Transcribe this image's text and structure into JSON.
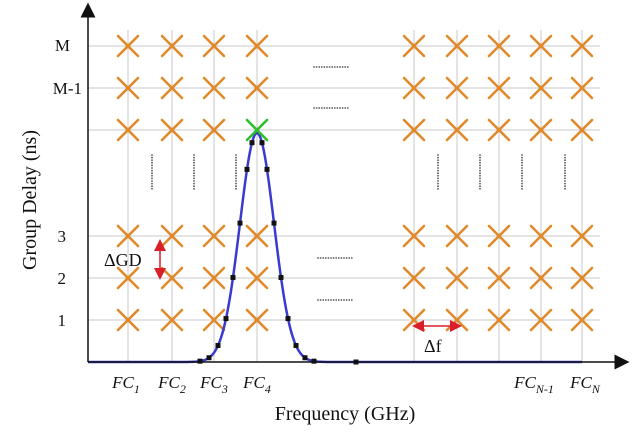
{
  "axes": {
    "y_title": "Group Delay (ns)",
    "x_title": "Frequency (GHz)"
  },
  "y_labels": [
    "M",
    "M-1",
    "3",
    "2",
    "1"
  ],
  "x_labels": [
    {
      "base": "FC",
      "sub": "1"
    },
    {
      "base": "FC",
      "sub": "2"
    },
    {
      "base": "FC",
      "sub": "3"
    },
    {
      "base": "FC",
      "sub": "4"
    },
    {
      "base": "FC",
      "sub": "N-1"
    },
    {
      "base": "FC",
      "sub": "N"
    }
  ],
  "annotations": {
    "delta_gd": "ΔGD",
    "delta_f": "Δf"
  },
  "colors": {
    "grid_marker": "#e08a2b",
    "selected_marker": "#2fbf2f",
    "curve": "#3a3ad0",
    "arrow": "#d9202a",
    "axis": "#111111",
    "gridline": "#c8c8c8"
  }
}
